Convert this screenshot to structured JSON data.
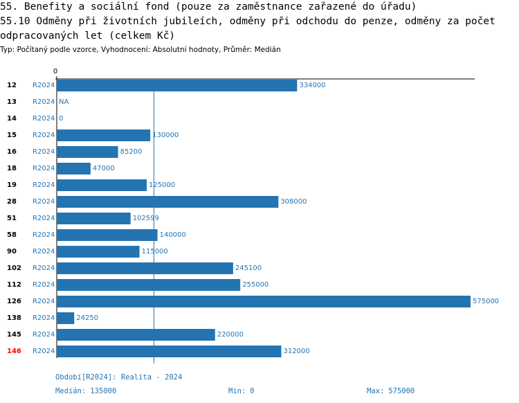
{
  "chart_data": {
    "type": "bar",
    "orientation": "horizontal",
    "title": "55. Benefity a sociální fond (pouze za zaměstnance zařazené do úřadu)",
    "subtitle": "55.10 Odměny při životních jubileích, odměny při odchodu do penze, odměny za počet odpracovaných let (celkem Kč)",
    "description": "Typ: Počítaný podle vzorce, Vyhodnocení: Absolutní hodnoty, Průměr: Medián",
    "categories": [
      "12",
      "13",
      "14",
      "15",
      "16",
      "18",
      "19",
      "28",
      "51",
      "58",
      "90",
      "102",
      "112",
      "126",
      "138",
      "145",
      "146"
    ],
    "label_colors": [
      "#000000",
      "#000000",
      "#000000",
      "#000000",
      "#000000",
      "#000000",
      "#000000",
      "#000000",
      "#000000",
      "#000000",
      "#000000",
      "#000000",
      "#000000",
      "#000000",
      "#000000",
      "#000000",
      "#ff0000"
    ],
    "periods": [
      "R2024",
      "R2024",
      "R2024",
      "R2024",
      "R2024",
      "R2024",
      "R2024",
      "R2024",
      "R2024",
      "R2024",
      "R2024",
      "R2024",
      "R2024",
      "R2024",
      "R2024",
      "R2024",
      "R2024"
    ],
    "values": [
      334000,
      null,
      0,
      130000,
      85200,
      47000,
      125000,
      308000,
      102599,
      140000,
      115000,
      245100,
      255000,
      575000,
      24250,
      220000,
      312000
    ],
    "value_labels": [
      "334000",
      "NA",
      "0",
      "130000",
      "85200",
      "47000",
      "125000",
      "308000",
      "102599",
      "140000",
      "115000",
      "245100",
      "255000",
      "575000",
      "24250",
      "220000",
      "312000"
    ],
    "color": "#2474b2",
    "xlim": [
      0,
      575000
    ],
    "xticks": [
      0
    ],
    "period_note": "Období[R2024]: Realita - 2024",
    "median_label": "Medián:",
    "median": 135000,
    "min_label": "Min:",
    "min": 0,
    "max_label": "Max:",
    "max": 575000
  }
}
